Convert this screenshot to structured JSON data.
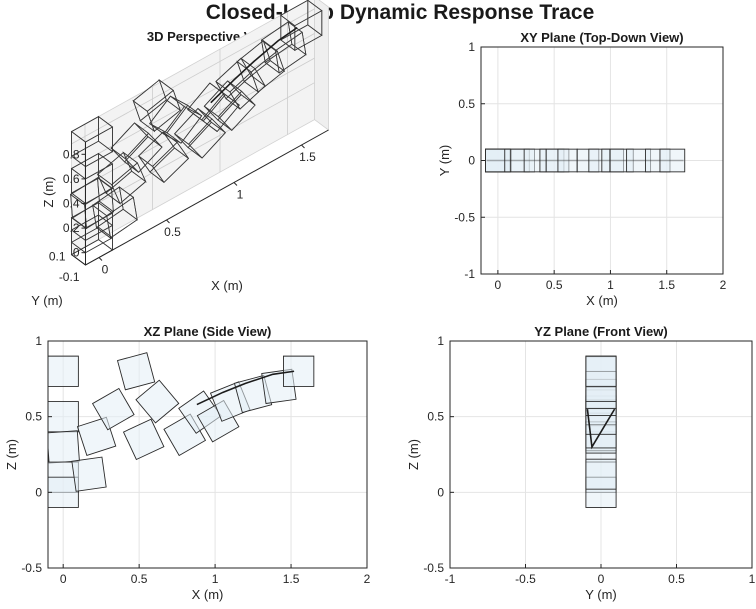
{
  "figure_title": "Closed-Loop Dynamic Response Trace",
  "chart_data": [
    {
      "id": "p3d",
      "type": "scatter",
      "title": "3D Perspective View",
      "xlabel": "X (m)",
      "ylabel": "Y (m)",
      "zlabel": "Z (m)",
      "xlim": [
        -0.1,
        1.7
      ],
      "ylim": [
        -0.1,
        0.1
      ],
      "zlim": [
        -0.1,
        0.9
      ],
      "xticks": [
        "0",
        "0.5",
        "1",
        "1.5"
      ],
      "yticks": [
        "-0.1",
        "0.1"
      ],
      "zticks": [
        "0",
        "0.2",
        "0.4",
        "0.6",
        "0.8"
      ]
    },
    {
      "id": "pxy",
      "type": "scatter",
      "title": "XY Plane (Top-Down View)",
      "xlabel": "X (m)",
      "ylabel": "Y (m)",
      "xlim": [
        -0.15,
        2
      ],
      "ylim": [
        -1,
        1
      ],
      "xticks": [
        "0",
        "0.5",
        "1",
        "1.5",
        "2"
      ],
      "yticks": [
        "-1",
        "-0.5",
        "0",
        "0.5",
        "1"
      ],
      "grid": true
    },
    {
      "id": "pxz",
      "type": "scatter",
      "title": "XZ Plane (Side View)",
      "xlabel": "X (m)",
      "ylabel": "Z (m)",
      "xlim": [
        -0.1,
        2
      ],
      "ylim": [
        -0.5,
        1
      ],
      "xticks": [
        "0",
        "0.5",
        "1",
        "1.5",
        "2"
      ],
      "yticks": [
        "-0.5",
        "0",
        "0.5",
        "1"
      ],
      "grid": true
    },
    {
      "id": "pyz",
      "type": "scatter",
      "title": "YZ Plane (Front View)",
      "xlabel": "Y (m)",
      "ylabel": "Z (m)",
      "xlim": [
        -1,
        1
      ],
      "ylim": [
        -0.5,
        1
      ],
      "xticks": [
        "-1",
        "-0.5",
        "0",
        "0.5",
        "1"
      ],
      "yticks": [
        "-0.5",
        "0",
        "0.5",
        "1"
      ],
      "grid": true
    }
  ],
  "trace": {
    "box_size_m": 0.2,
    "boxes": [
      {
        "x": 0.0,
        "z": 0.8,
        "angle_deg": 0
      },
      {
        "x": 0.0,
        "z": 0.5,
        "angle_deg": 0
      },
      {
        "x": 0.0,
        "z": 0.3,
        "angle_deg": 4
      },
      {
        "x": 0.0,
        "z": 0.1,
        "angle_deg": 0
      },
      {
        "x": 0.0,
        "z": 0.0,
        "angle_deg": 0
      },
      {
        "x": 0.17,
        "z": 0.12,
        "angle_deg": 8
      },
      {
        "x": 0.22,
        "z": 0.37,
        "angle_deg": 18
      },
      {
        "x": 0.33,
        "z": 0.55,
        "angle_deg": 30
      },
      {
        "x": 0.48,
        "z": 0.8,
        "angle_deg": 15
      },
      {
        "x": 0.53,
        "z": 0.35,
        "angle_deg": 25
      },
      {
        "x": 0.62,
        "z": 0.6,
        "angle_deg": 40
      },
      {
        "x": 0.8,
        "z": 0.38,
        "angle_deg": 30
      },
      {
        "x": 0.9,
        "z": 0.53,
        "angle_deg": 35
      },
      {
        "x": 1.02,
        "z": 0.47,
        "angle_deg": 30
      },
      {
        "x": 1.1,
        "z": 0.6,
        "angle_deg": 22
      },
      {
        "x": 1.25,
        "z": 0.65,
        "angle_deg": 15
      },
      {
        "x": 1.42,
        "z": 0.7,
        "angle_deg": 8
      },
      {
        "x": 1.55,
        "z": 0.8,
        "angle_deg": 0
      }
    ],
    "path": [
      {
        "x": 0.88,
        "z": 0.58
      },
      {
        "x": 1.05,
        "z": 0.66
      },
      {
        "x": 1.2,
        "z": 0.72
      },
      {
        "x": 1.38,
        "z": 0.78
      },
      {
        "x": 1.52,
        "z": 0.8
      }
    ]
  }
}
